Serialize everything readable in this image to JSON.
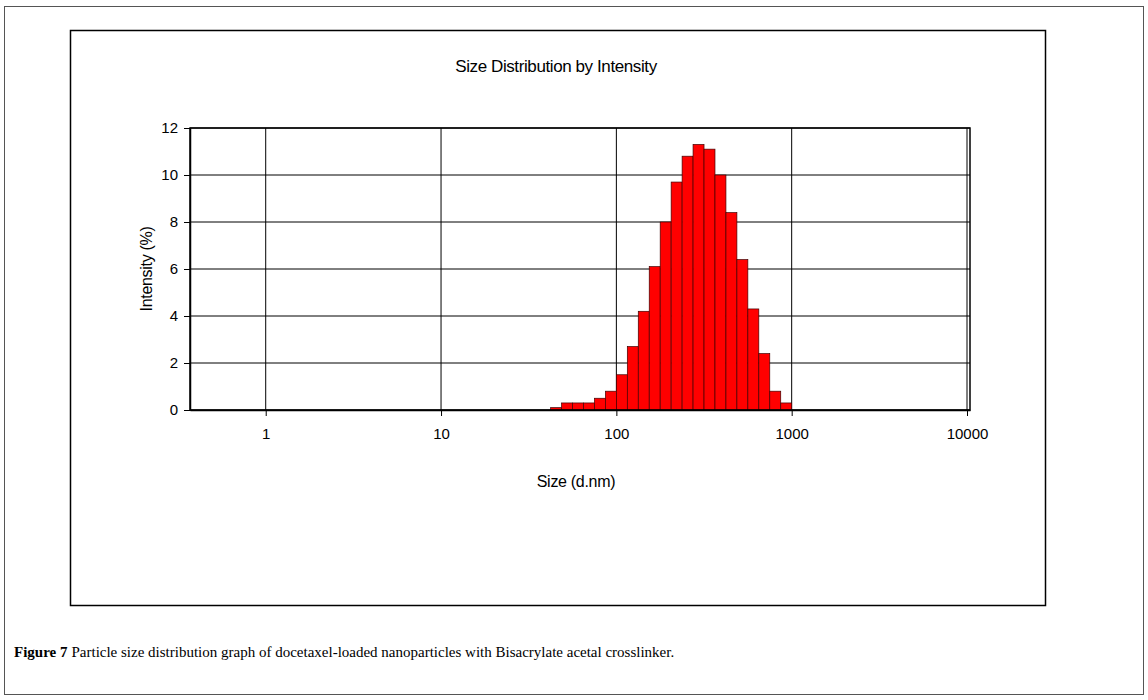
{
  "chart_data": {
    "type": "histogram",
    "title": "Size Distribution by Intensity",
    "x_label": "Size (d.nm)",
    "y_label": "Intensity (%)",
    "caption_label": "Figure 7",
    "caption": "Particle size distribution graph of docetaxel-loaded nanoparticles with Bisacrylate acetal crosslinker.",
    "bins": [
      42.17,
      48.7,
      56.23,
      64.94,
      74.99,
      86.6,
      100,
      115.48,
      133.35,
      153.99,
      177.83,
      205.35,
      237.14,
      273.84,
      316.23,
      365.17,
      421.7,
      486.97,
      562.34,
      649.38,
      749.89,
      865.96,
      1000
    ],
    "values": [
      0.1,
      0.3,
      0.3,
      0.3,
      0.5,
      0.8,
      1.5,
      2.7,
      4.2,
      6.1,
      8.0,
      9.7,
      10.8,
      11.3,
      11.1,
      10.0,
      8.4,
      6.4,
      4.3,
      2.4,
      0.8,
      0.3
    ],
    "color": "#ff0000",
    "log": "x",
    "xlim": [
      0.37,
      10400
    ],
    "xticks": [
      1,
      10,
      100,
      1000,
      10000
    ],
    "ylim": [
      0,
      12
    ],
    "yticks": [
      0,
      2,
      4,
      6,
      8,
      10,
      12
    ],
    "grid": true
  }
}
